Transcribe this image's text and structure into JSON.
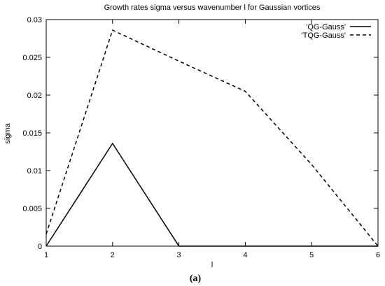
{
  "chart_data": {
    "type": "line",
    "title": "Growth rates sigma versus wavenumber l for Gaussian vortices",
    "xlabel": "l",
    "ylabel": "sigma",
    "xlim": [
      1,
      6
    ],
    "ylim": [
      0,
      0.03
    ],
    "xticks": [
      1,
      2,
      3,
      4,
      5,
      6
    ],
    "xtick_labels": [
      "1",
      "2",
      "3",
      "4",
      "5",
      "6"
    ],
    "yticks": [
      0,
      0.005,
      0.01,
      0.015,
      0.02,
      0.025,
      0.03
    ],
    "ytick_labels": [
      "0",
      "0.005",
      "0.01",
      "0.015",
      "0.02",
      "0.025",
      "0.03"
    ],
    "grid": false,
    "legend_position": "top-right",
    "series": [
      {
        "name": "'QG-Gauss'",
        "style": "solid",
        "color": "#000000",
        "x": [
          1,
          2,
          3,
          4,
          5,
          6
        ],
        "y": [
          0,
          0.0136,
          0,
          0,
          0,
          0
        ]
      },
      {
        "name": "'TQG-Gauss'",
        "style": "dashed",
        "color": "#000000",
        "x": [
          1,
          2,
          3,
          4,
          5,
          6
        ],
        "y": [
          0.0016,
          0.0286,
          0.0245,
          0.0205,
          0.0108,
          0
        ]
      }
    ]
  },
  "caption": "(a)"
}
